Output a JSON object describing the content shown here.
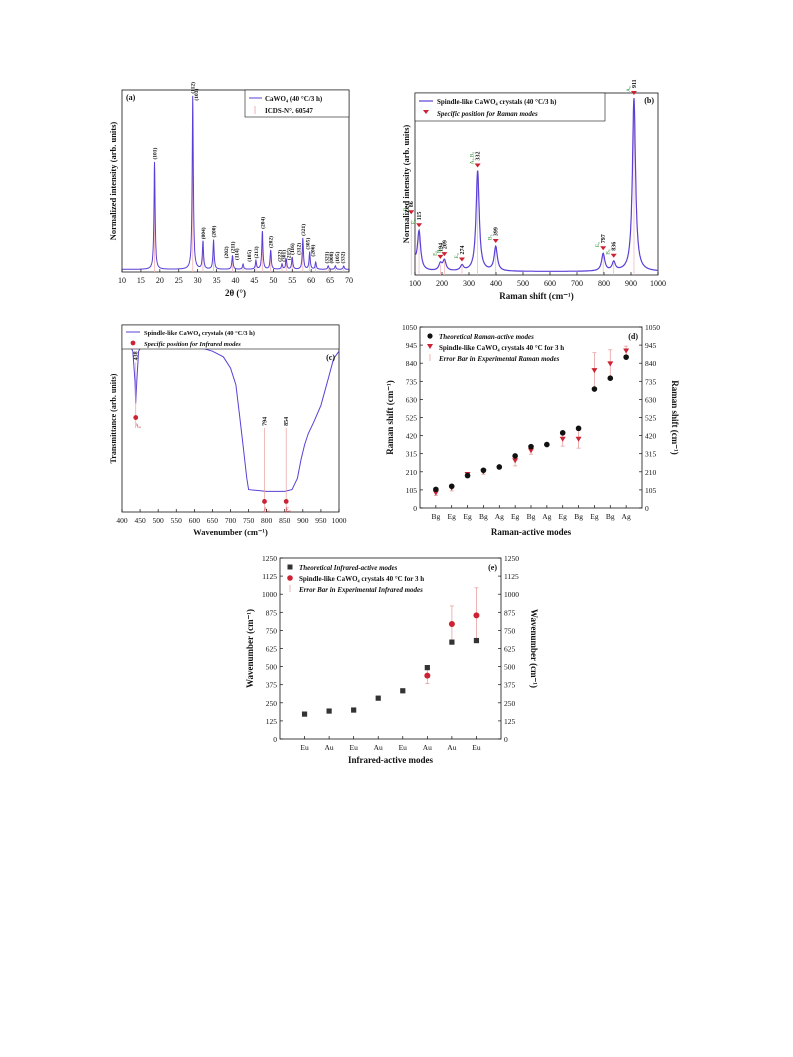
{
  "colors": {
    "line": "#5b3fd6",
    "ref": "#f0b2b8",
    "marker": "#cc2233",
    "dark": "#111111",
    "green": "#2a8a2a",
    "guide": "#e8a0a0"
  },
  "chart_data": [
    {
      "id": "a",
      "type": "line",
      "panel_label": "(a)",
      "xlabel": "2θ (°)",
      "ylabel": "Normalized intensity (arb. units)",
      "xlim": [
        10,
        70
      ],
      "ylim": [
        0,
        105
      ],
      "xticks": [
        "10",
        "15",
        "20",
        "25",
        "30",
        "35",
        "40",
        "45",
        "50",
        "55",
        "60",
        "65",
        "70"
      ],
      "legend": [
        {
          "label": "CaWO₄ (40 °C/3 h)"
        },
        {
          "label": "ICDS-N°. 60547"
        }
      ],
      "series": [
        {
          "name": "CaWO₄ (40 °C/3 h)",
          "peaks": [
            [
              18.6,
              62
            ],
            [
              28.7,
              100
            ],
            [
              31.4,
              16
            ],
            [
              34.2,
              17
            ],
            [
              39.2,
              8
            ],
            [
              42,
              3
            ],
            [
              45.4,
              5
            ],
            [
              47.1,
              22
            ],
            [
              49.3,
              11
            ],
            [
              52.3,
              3
            ],
            [
              53.4,
              6
            ],
            [
              55,
              7
            ],
            [
              57.8,
              18
            ],
            [
              59.6,
              10
            ],
            [
              61.2,
              4
            ],
            [
              64.5,
              2
            ],
            [
              66.4,
              2
            ],
            [
              68.6,
              2
            ]
          ]
        },
        {
          "name": "ICDS-N°. 60547",
          "x": [
            18.6,
            28.7,
            31.4,
            34.2,
            39.2,
            42,
            45.4,
            47.1,
            49.3,
            52.3,
            53.4,
            55,
            57.8,
            59.6,
            61.2,
            64.5,
            66.4,
            68.6
          ]
        }
      ],
      "annotations": [
        {
          "x": 18.6,
          "y": 62,
          "text": "(101)"
        },
        {
          "x": 28.7,
          "y": 100,
          "text": "(112)"
        },
        {
          "x": 29.6,
          "y": 96,
          "text": "(103)"
        },
        {
          "x": 31.4,
          "y": 16,
          "text": "(004)"
        },
        {
          "x": 34.2,
          "y": 17,
          "text": "(200)"
        },
        {
          "x": 37.5,
          "y": 5,
          "text": "(202)"
        },
        {
          "x": 39.2,
          "y": 8,
          "text": "(211)"
        },
        {
          "x": 40.3,
          "y": 4,
          "text": "(114)"
        },
        {
          "x": 43.6,
          "y": 3,
          "text": "(105)"
        },
        {
          "x": 45.4,
          "y": 5,
          "text": "(213)"
        },
        {
          "x": 47.1,
          "y": 22,
          "text": "(204)"
        },
        {
          "x": 49.3,
          "y": 11,
          "text": "(202)"
        },
        {
          "x": 51.6,
          "y": 3,
          "text": "(222)"
        },
        {
          "x": 52.7,
          "y": 3,
          "text": "(301)"
        },
        {
          "x": 54,
          "y": 4,
          "text": "(215)"
        },
        {
          "x": 55,
          "y": 7,
          "text": "(116)"
        },
        {
          "x": 56.7,
          "y": 7,
          "text": "(312)"
        },
        {
          "x": 57.8,
          "y": 18,
          "text": "(321)"
        },
        {
          "x": 59,
          "y": 10,
          "text": "(305)"
        },
        {
          "x": 60.3,
          "y": 6,
          "text": "(206)"
        },
        {
          "x": 64,
          "y": 2,
          "text": "(321)"
        },
        {
          "x": 65.3,
          "y": 2,
          "text": "(008)"
        },
        {
          "x": 66.8,
          "y": 2,
          "text": "(105)"
        },
        {
          "x": 68.3,
          "y": 2,
          "text": "(332)"
        }
      ]
    },
    {
      "id": "b",
      "type": "line",
      "panel_label": "(b)",
      "xlabel": "Raman shift (cm⁻¹)",
      "ylabel": "Normalized intensity (arb. units)",
      "xlim": [
        100,
        1000
      ],
      "ylim": [
        0,
        105
      ],
      "xticks": [
        "100",
        "200",
        "300",
        "400",
        "500",
        "600",
        "700",
        "800",
        "900",
        "1000"
      ],
      "legend": [
        {
          "label": "Spindle-like CaWO₄ crystals (40 °C/3 h)"
        },
        {
          "label": "Specific position for Raman modes"
        }
      ],
      "series": [
        {
          "name": "Spindle-like CaWO₄ crystals (40 °C/3 h)",
          "peaks": [
            [
              86,
              30
            ],
            [
              115,
              22
            ],
            [
              194,
              4
            ],
            [
              209,
              6
            ],
            [
              274,
              3
            ],
            [
              332,
              58
            ],
            [
              399,
              14
            ],
            [
              797,
              10
            ],
            [
              836,
              5
            ],
            [
              911,
              100
            ]
          ]
        },
        {
          "name": "Specific position for Raman modes",
          "x": [
            86,
            115,
            194,
            209,
            274,
            332,
            399,
            797,
            836,
            911
          ]
        }
      ],
      "annotations": [
        {
          "x": 86,
          "value": "86",
          "mode": "B₉"
        },
        {
          "x": 115,
          "value": "115",
          "mode": "E₉"
        },
        {
          "x": 194,
          "value": "194",
          "mode": "E₉"
        },
        {
          "x": 209,
          "value": "209",
          "mode": "B₉"
        },
        {
          "x": 274,
          "value": "274",
          "mode": "E₉"
        },
        {
          "x": 332,
          "value": "332",
          "mode": "A₉,B₉"
        },
        {
          "x": 399,
          "value": "399",
          "mode": "B₉"
        },
        {
          "x": 797,
          "value": "797",
          "mode": "E₉"
        },
        {
          "x": 836,
          "value": "836",
          "mode": "B₉"
        },
        {
          "x": 911,
          "value": "911",
          "mode": "A₉"
        }
      ]
    },
    {
      "id": "c",
      "type": "line",
      "panel_label": "(c)",
      "xlabel": "Wavenumber (cm⁻¹)",
      "ylabel": "Transmittance (arb. units)",
      "xlim": [
        400,
        1000
      ],
      "ylim": [
        0,
        100
      ],
      "xticks": [
        "400",
        "450",
        "500",
        "550",
        "600",
        "650",
        "700",
        "750",
        "800",
        "850",
        "900",
        "950",
        "1000"
      ],
      "legend": [
        {
          "label": "Spindle-like CaWO₄ crystals (40 °C/3 h)"
        },
        {
          "label": "Specific position for Infrared modes"
        }
      ],
      "series": [
        {
          "name": "Spindle-like CaWO₄ crystals (40 °C/3 h)",
          "x": [
            400,
            420,
            430,
            436,
            438,
            441,
            446,
            455,
            470,
            500,
            550,
            600,
            650,
            680,
            700,
            715,
            725,
            735,
            745,
            750,
            800,
            850,
            870,
            885,
            895,
            905,
            915,
            930,
            950,
            970,
            985,
            1000
          ],
          "y": [
            92,
            90,
            86,
            70,
            58,
            70,
            86,
            89,
            90,
            91,
            90,
            89,
            86,
            83,
            77,
            68,
            52,
            35,
            18,
            12,
            11,
            11,
            12,
            18,
            28,
            36,
            42,
            48,
            57,
            71,
            82,
            86
          ]
        },
        {
          "name": "Specific position for Infrared modes",
          "x": [
            438,
            794,
            854
          ]
        }
      ],
      "annotations": [
        {
          "x": 438,
          "value": "438",
          "mode": "Aᵤ"
        },
        {
          "x": 794,
          "value": "794",
          "mode": "Aᵤ"
        },
        {
          "x": 854,
          "value": "854",
          "mode": "Eᵤ"
        }
      ]
    },
    {
      "id": "d",
      "type": "scatter",
      "panel_label": "(d)",
      "xlabel": "Raman-active modes",
      "ylabel": "Raman shift (cm⁻¹)",
      "ylabel_right": "Raman shift (cm⁻¹)",
      "ylim": [
        0,
        1050
      ],
      "yticks": [
        "0",
        "105",
        "210",
        "315",
        "420",
        "525",
        "630",
        "735",
        "840",
        "945",
        "1050"
      ],
      "categories": [
        "Bg",
        "Eg",
        "Eg",
        "Bg",
        "Ag",
        "Eg",
        "Bg",
        "Ag",
        "Eg",
        "Bg",
        "Eg",
        "Bg",
        "Ag"
      ],
      "legend": [
        {
          "label": "Theoretical Raman-active modes"
        },
        {
          "label": "Spindle-like CaWO₄ crystals 40 °C for 3 h"
        },
        {
          "label": "Error Bar in Experimental Raman modes"
        }
      ],
      "series": [
        {
          "name": "Theoretical Raman-active modes",
          "values": [
            108,
            126,
            188,
            219,
            238,
            302,
            356,
            368,
            436,
            462,
            690,
            753,
            875
          ]
        },
        {
          "name": "Spindle-like CaWO₄ crystals 40 °C for 3 h",
          "values": [
            86,
            115,
            194,
            209,
            null,
            274,
            332,
            null,
            399,
            399,
            797,
            836,
            911
          ],
          "errors": [
            14,
            16,
            4,
            13,
            null,
            30,
            20,
            null,
            40,
            52,
            104,
            82,
            28
          ]
        }
      ]
    },
    {
      "id": "e",
      "type": "scatter",
      "panel_label": "(e)",
      "xlabel": "Infrared-active modes",
      "ylabel": "Wavenumber (cm⁻¹)",
      "ylabel_right": "Wavenumber (cm⁻¹)",
      "ylim": [
        0,
        1250
      ],
      "yticks": [
        "0",
        "125",
        "250",
        "375",
        "500",
        "625",
        "750",
        "875",
        "1000",
        "1125",
        "1250"
      ],
      "categories": [
        "Eu",
        "Au",
        "Eu",
        "Au",
        "Eu",
        "Au",
        "Au",
        "Eu"
      ],
      "legend": [
        {
          "label": "Theoretical Infrared-active modes"
        },
        {
          "label": "Spindle-like CaWO₄ crystals 40 °C for 3 h"
        },
        {
          "label": "Error Bar in Experimental Infrared modes"
        }
      ],
      "series": [
        {
          "name": "Theoretical Infrared-active modes",
          "values": [
            172,
            193,
            200,
            282,
            333,
            493,
            669,
            680
          ]
        },
        {
          "name": "Spindle-like CaWO₄ crystals 40 °C for 3 h",
          "values": [
            null,
            null,
            null,
            null,
            null,
            438,
            794,
            854
          ],
          "errors": [
            null,
            null,
            null,
            null,
            null,
            55,
            125,
            190
          ]
        }
      ]
    }
  ]
}
